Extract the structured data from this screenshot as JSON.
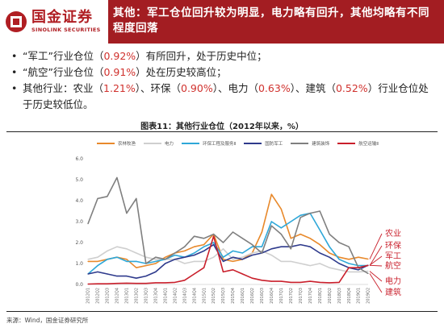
{
  "header": {
    "logo_cn": "国金证券",
    "logo_en": "SINOLINK SECURITIES",
    "title": "其他：军工仓位回升较为明显，电力略有回升，其他均略有不同程度回落"
  },
  "bullets": [
    {
      "parts": [
        "“军工”行业仓位（",
        "0.92%",
        "）有所回升，处于历史中位；"
      ]
    },
    {
      "parts": [
        "“航空”行业仓位（",
        "0.91%",
        "）处在历史较高位；"
      ]
    },
    {
      "parts": [
        "其他行业：农业（",
        "1.21%",
        "）、环保（",
        "0.90%",
        "）、电力（",
        "0.63%",
        "）、建筑（",
        "0.52%",
        "）行业仓位处于历史较低位。"
      ]
    }
  ],
  "chart_data": {
    "type": "line",
    "title": "图表11：其他行业仓位（2012年以来，%）",
    "x": [
      "2012Q1",
      "2012Q2",
      "2012Q3",
      "2012Q4",
      "2013Q1",
      "2013Q2",
      "2013Q3",
      "2013Q4",
      "2014Q1",
      "2014Q2",
      "2014Q3",
      "2014Q4",
      "2015Q1",
      "2015Q2",
      "2015Q3",
      "2015Q4",
      "2016Q1",
      "2016Q2",
      "2016Q3",
      "2016Q4",
      "2017Q1",
      "2017Q2",
      "2017Q3",
      "2017Q4",
      "2018Q1",
      "2018Q2",
      "2018Q3",
      "2018Q4",
      "2019Q1",
      "2019Q2"
    ],
    "tick_labels": [
      "2012Q1",
      "2012Q2",
      "2012Q3",
      "2012Q4",
      "2013Q1",
      "2013Q2",
      "2013Q3",
      "2013Q4",
      "2014Q1",
      "2014Q2",
      "2014Q3",
      "2014Q4",
      "2015Q1",
      "2015Q2",
      "2015Q3",
      "2015Q4",
      "2016Q1",
      "2016Q2",
      "2016Q3",
      "2016Q4",
      "2017Q1",
      "2017Q2",
      "2017Q3",
      "2017Q4",
      "2018Q1",
      "2018Q2",
      "2018Q3",
      "2018Q4",
      "2019Q1",
      "2019Q2"
    ],
    "ylim": [
      0,
      6
    ],
    "yticks": [
      "0.0",
      "1.0",
      "2.0",
      "3.0",
      "4.0",
      "5.0",
      "6.0"
    ],
    "legend_position": "top",
    "series": [
      {
        "name": "农林牧渔",
        "color": "#e8892b",
        "values": [
          1.1,
          1.1,
          1.2,
          1.3,
          1.2,
          0.8,
          0.9,
          1.0,
          1.3,
          1.5,
          1.6,
          1.8,
          1.9,
          2.4,
          1.2,
          1.1,
          1.2,
          1.5,
          2.5,
          4.3,
          3.6,
          2.2,
          2.4,
          2.2,
          1.9,
          1.5,
          1.3,
          1.2,
          1.3,
          1.21
        ]
      },
      {
        "name": "电力",
        "color": "#cfcfcf",
        "values": [
          1.2,
          1.3,
          1.6,
          1.8,
          1.7,
          1.5,
          1.3,
          1.2,
          1.2,
          1.2,
          1.0,
          1.1,
          1.1,
          1.3,
          1.7,
          1.2,
          1.3,
          1.5,
          1.6,
          1.4,
          1.1,
          1.1,
          1.0,
          0.9,
          1.0,
          0.8,
          0.7,
          0.6,
          0.6,
          0.63
        ]
      },
      {
        "name": "环保工程及服务Ⅱ",
        "color": "#2ea7d8",
        "values": [
          0.5,
          0.9,
          1.2,
          1.3,
          1.1,
          1.1,
          1.0,
          1.1,
          1.2,
          1.4,
          1.3,
          1.5,
          1.8,
          2.0,
          1.3,
          1.6,
          1.5,
          1.8,
          1.8,
          3.0,
          2.7,
          3.0,
          3.3,
          3.4,
          2.6,
          1.8,
          1.2,
          1.0,
          0.9,
          0.9
        ]
      },
      {
        "name": "国防军工",
        "color": "#2e3a8c",
        "values": [
          0.5,
          0.6,
          0.5,
          0.4,
          0.4,
          0.3,
          0.4,
          0.6,
          1.0,
          1.2,
          1.3,
          1.4,
          1.6,
          1.9,
          1.1,
          1.3,
          1.2,
          1.4,
          1.5,
          1.7,
          1.8,
          1.8,
          1.9,
          1.8,
          1.5,
          1.3,
          1.0,
          0.8,
          0.7,
          0.92
        ]
      },
      {
        "name": "建筑装饰",
        "color": "#7f7f7f",
        "values": [
          2.9,
          4.1,
          4.2,
          5.1,
          3.4,
          4.1,
          1.0,
          1.3,
          1.2,
          1.5,
          1.8,
          2.3,
          2.2,
          2.4,
          2.0,
          2.5,
          2.2,
          1.9,
          1.5,
          2.8,
          2.4,
          1.7,
          3.2,
          3.4,
          3.5,
          2.4,
          2.0,
          1.8,
          0.8,
          0.52
        ]
      },
      {
        "name": "航空运输Ⅱ",
        "color": "#c91f2b",
        "values": [
          0.02,
          0.03,
          0.03,
          0.05,
          0.06,
          0.05,
          0.05,
          0.08,
          0.08,
          0.1,
          0.2,
          0.5,
          0.8,
          2.3,
          0.6,
          0.7,
          0.5,
          0.3,
          0.2,
          0.15,
          0.15,
          0.1,
          0.1,
          0.15,
          0.1,
          0.08,
          0.1,
          0.8,
          0.8,
          0.91
        ]
      }
    ],
    "annotations": [
      {
        "text": "农业",
        "series": "农林牧渔"
      },
      {
        "text": "环保",
        "series": "环保工程及服务Ⅱ"
      },
      {
        "text": "军工",
        "series": "国防军工"
      },
      {
        "text": "航空",
        "series": "航空运输Ⅱ"
      },
      {
        "text": "电力",
        "series": "电力"
      },
      {
        "text": "建筑",
        "series": "建筑装饰"
      }
    ]
  },
  "source": "来源：Wind，国金证券研究所"
}
